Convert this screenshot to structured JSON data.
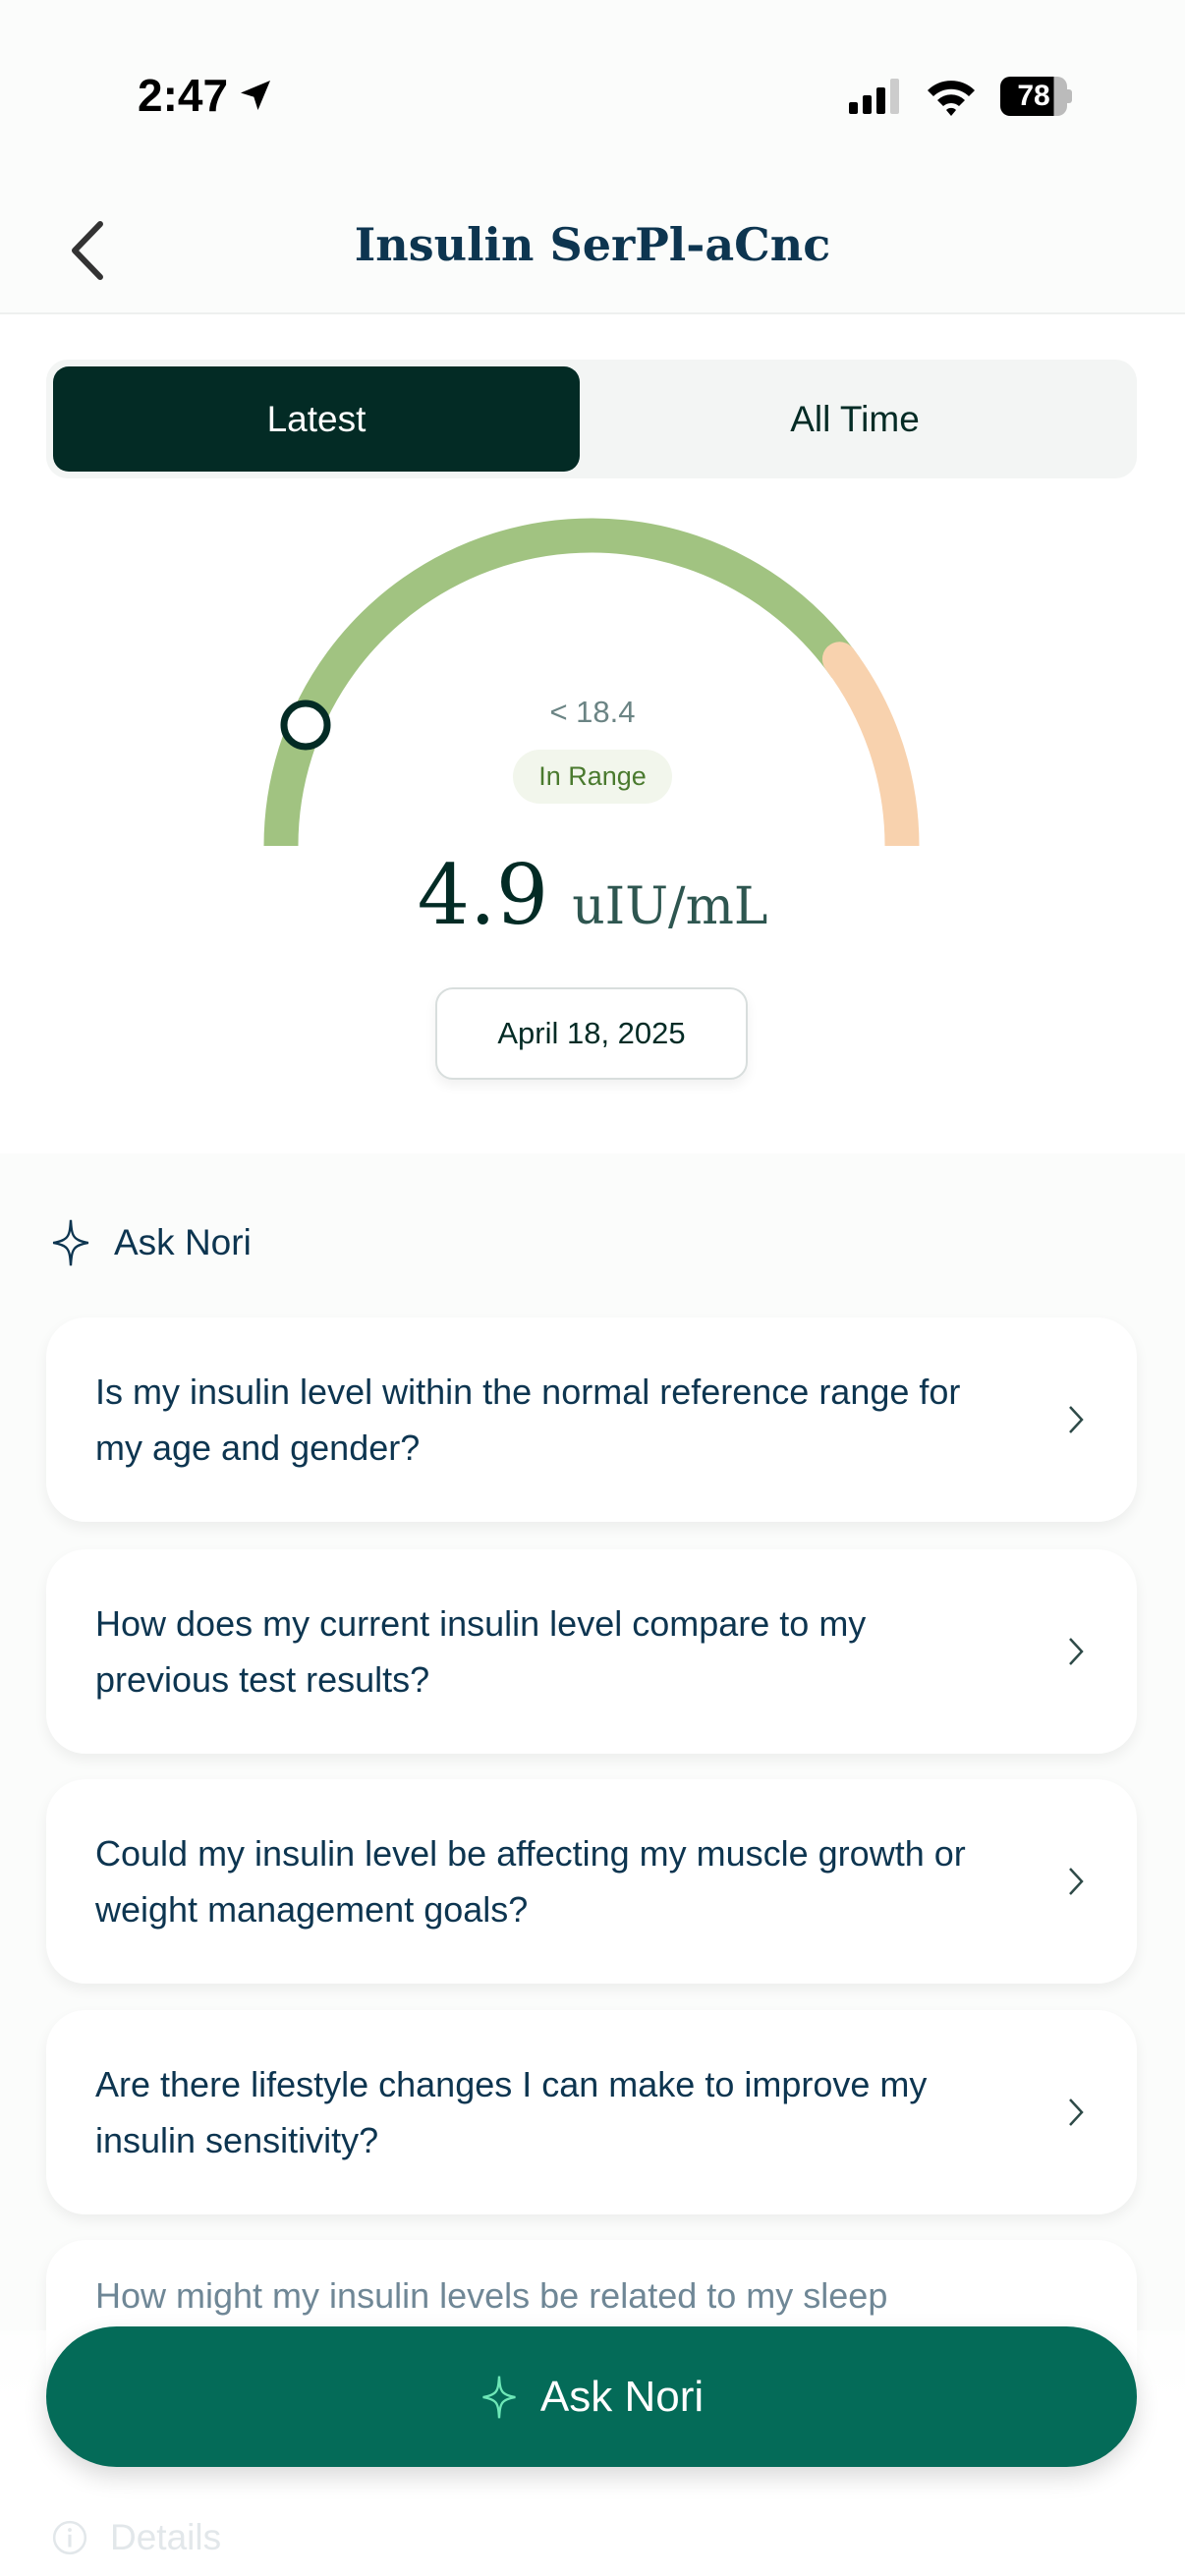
{
  "status_bar": {
    "time": "2:47",
    "battery": "78",
    "icons": [
      "location-arrow-icon",
      "signal-icon",
      "wifi-icon",
      "battery-icon"
    ]
  },
  "header": {
    "title": "Insulin SerPl-aCnc",
    "back_icon": "chevron-left-icon"
  },
  "tabs": [
    {
      "label": "Latest",
      "active": true
    },
    {
      "label": "All Time",
      "active": false
    }
  ],
  "gauge": {
    "reference": "< 18.4",
    "status": "In Range",
    "value": "4.9",
    "unit": "uIU/mL",
    "date": "April 18, 2025",
    "colors": {
      "in_range": "#a1c381",
      "high": "#f8d2ae",
      "marker": "#032b25"
    }
  },
  "ask_nori": {
    "heading": "Ask Nori",
    "icon": "sparkle-icon",
    "questions": [
      "Is my insulin level within the normal reference range for my age and gender?",
      "How does my current insulin level compare to my previous test results?",
      "Could my insulin level be affecting my muscle growth or weight management goals?",
      "Are there lifestyle changes I can make to improve my insulin sensitivity?",
      "How might my insulin levels be related to my sleep"
    ],
    "button_label": "Ask Nori"
  },
  "details": {
    "label": "Details",
    "icon": "info-icon"
  },
  "colors": {
    "primary_dark": "#032b25",
    "button": "#046b58",
    "text": "#0d3550"
  }
}
